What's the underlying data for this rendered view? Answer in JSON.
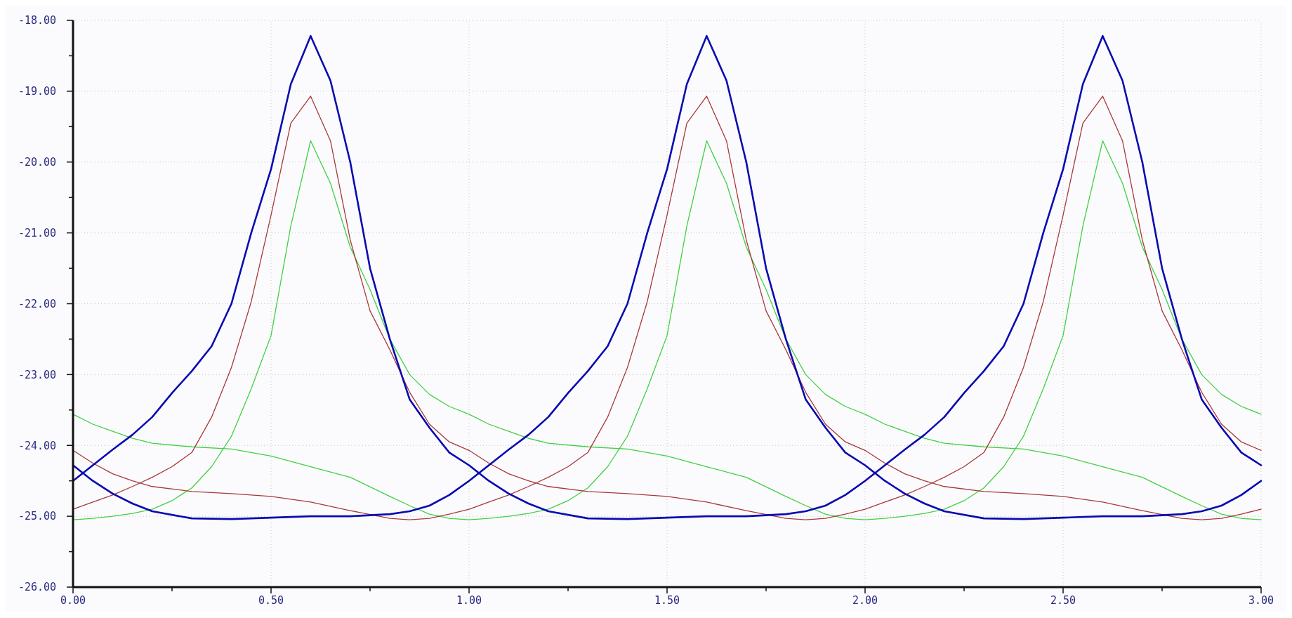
{
  "chart_data": {
    "type": "line",
    "xlim": [
      0,
      3
    ],
    "ylim": [
      -26,
      -18
    ],
    "xticks": [
      {
        "value": 0,
        "label": "0.00"
      },
      {
        "value": 0.25,
        "label": null
      },
      {
        "value": 0.5,
        "label": "0.50"
      },
      {
        "value": 0.75,
        "label": null
      },
      {
        "value": 1,
        "label": "1.00"
      },
      {
        "value": 1.25,
        "label": null
      },
      {
        "value": 1.5,
        "label": "1.50"
      },
      {
        "value": 1.75,
        "label": null
      },
      {
        "value": 2,
        "label": "2.00"
      },
      {
        "value": 2.25,
        "label": null
      },
      {
        "value": 2.5,
        "label": "2.50"
      },
      {
        "value": 2.75,
        "label": null
      },
      {
        "value": 3,
        "label": "3.00"
      }
    ],
    "yticks": [
      {
        "value": -26,
        "label": "-26.00"
      },
      {
        "value": -25.5,
        "label": null
      },
      {
        "value": -25,
        "label": "-25.00"
      },
      {
        "value": -24.5,
        "label": null
      },
      {
        "value": -24,
        "label": "-24.00"
      },
      {
        "value": -23.5,
        "label": null
      },
      {
        "value": -23,
        "label": "-23.00"
      },
      {
        "value": -22.5,
        "label": null
      },
      {
        "value": -22,
        "label": "-22.00"
      },
      {
        "value": -21.5,
        "label": null
      },
      {
        "value": -21,
        "label": "-21.00"
      },
      {
        "value": -20.5,
        "label": null
      },
      {
        "value": -20,
        "label": "-20.00"
      },
      {
        "value": -19.5,
        "label": null
      },
      {
        "value": -19,
        "label": "-19.00"
      },
      {
        "value": -18.5,
        "label": null
      },
      {
        "value": -18,
        "label": "-18.00"
      }
    ],
    "grid": true,
    "line_style": "solid",
    "marker": "none",
    "series": [
      {
        "color": "#40d040",
        "x": [
          0,
          0.05,
          0.1,
          0.15,
          0.2,
          0.25,
          0.3,
          0.35,
          0.4,
          0.45,
          0.5,
          0.55,
          0.6,
          0.65,
          0.7,
          0.75,
          0.8,
          0.85,
          0.9,
          0.95,
          1,
          1.05,
          1.1,
          1.15,
          1.2,
          1.3,
          1.4,
          1.5,
          1.6,
          1.7,
          1.8,
          1.85,
          1.9,
          1.95,
          2,
          2.05,
          2.1,
          2.15,
          2.2,
          2.25,
          2.3,
          2.35,
          2.4,
          2.45,
          2.5,
          2.55,
          2.6,
          2.65,
          2.7,
          2.75,
          2.8,
          2.85,
          2.9,
          2.95,
          3
        ],
        "values": [
          -25.05,
          -25.03,
          -25.0,
          -24.96,
          -24.9,
          -24.78,
          -24.6,
          -24.3,
          -23.87,
          -23.2,
          -22.45,
          -20.9,
          -19.7,
          -20.3,
          -21.2,
          -21.8,
          -22.5,
          -23.0,
          -23.28,
          -23.45,
          -23.56,
          -23.7,
          -23.8,
          -23.9,
          -23.97,
          -24.02,
          -24.05,
          -24.15,
          -24.3,
          -24.45,
          -24.72,
          -24.85,
          -24.97,
          -25.03,
          -25.05,
          -25.03,
          -25.0,
          -24.96,
          -24.9,
          -24.78,
          -24.6,
          -24.3,
          -23.87,
          -23.2,
          -22.45,
          -20.9,
          -19.7,
          -20.3,
          -21.2,
          -21.8,
          -22.5,
          -23.0,
          -23.28,
          -23.45,
          -23.56
        ]
      },
      {
        "color": "#40d040",
        "x": [
          0,
          0.05,
          0.1,
          0.15,
          0.2,
          0.3,
          0.4,
          0.5,
          0.6,
          0.7,
          0.8,
          0.85,
          0.9,
          0.95,
          1,
          1.05,
          1.1,
          1.15,
          1.2,
          1.25,
          1.3,
          1.35,
          1.4,
          1.45,
          1.5,
          1.55,
          1.6,
          1.65,
          1.7,
          1.75,
          1.8,
          1.85,
          1.9,
          1.95,
          2,
          2.05,
          2.1,
          2.15,
          2.2,
          2.3,
          2.4,
          2.5,
          2.6,
          2.7,
          2.8,
          2.85,
          2.9,
          2.95,
          3
        ],
        "values": [
          -23.56,
          -23.7,
          -23.8,
          -23.9,
          -23.97,
          -24.02,
          -24.05,
          -24.15,
          -24.3,
          -24.45,
          -24.72,
          -24.85,
          -24.97,
          -25.03,
          -25.05,
          -25.03,
          -25.0,
          -24.96,
          -24.9,
          -24.78,
          -24.6,
          -24.3,
          -23.87,
          -23.2,
          -22.45,
          -20.9,
          -19.7,
          -20.3,
          -21.2,
          -21.8,
          -22.5,
          -23.0,
          -23.28,
          -23.45,
          -23.56,
          -23.7,
          -23.8,
          -23.9,
          -23.97,
          -24.02,
          -24.05,
          -24.15,
          -24.3,
          -24.45,
          -24.72,
          -24.85,
          -24.97,
          -25.03,
          -25.05
        ]
      },
      {
        "color": "#a83838",
        "x": [
          0,
          0.05,
          0.1,
          0.15,
          0.2,
          0.25,
          0.3,
          0.35,
          0.4,
          0.45,
          0.5,
          0.55,
          0.6,
          0.65,
          0.7,
          0.75,
          0.8,
          0.85,
          0.9,
          0.95,
          1,
          1.05,
          1.1,
          1.15,
          1.2,
          1.3,
          1.4,
          1.5,
          1.6,
          1.7,
          1.8,
          1.85,
          1.9,
          1.95,
          2,
          2.05,
          2.1,
          2.15,
          2.2,
          2.25,
          2.3,
          2.35,
          2.4,
          2.45,
          2.5,
          2.55,
          2.6,
          2.65,
          2.7,
          2.75,
          2.8,
          2.85,
          2.9,
          2.95,
          3
        ],
        "values": [
          -24.9,
          -24.8,
          -24.7,
          -24.58,
          -24.45,
          -24.3,
          -24.1,
          -23.6,
          -22.9,
          -21.97,
          -20.75,
          -19.45,
          -19.07,
          -19.7,
          -21.1,
          -22.1,
          -22.65,
          -23.25,
          -23.7,
          -23.95,
          -24.07,
          -24.25,
          -24.4,
          -24.5,
          -24.58,
          -24.65,
          -24.68,
          -24.72,
          -24.8,
          -24.92,
          -25.03,
          -25.05,
          -25.03,
          -24.97,
          -24.9,
          -24.8,
          -24.7,
          -24.58,
          -24.45,
          -24.3,
          -24.1,
          -23.6,
          -22.9,
          -21.97,
          -20.75,
          -19.45,
          -19.07,
          -19.7,
          -21.1,
          -22.1,
          -22.65,
          -23.25,
          -23.7,
          -23.95,
          -24.07
        ]
      },
      {
        "color": "#a83838",
        "x": [
          0,
          0.05,
          0.1,
          0.15,
          0.2,
          0.3,
          0.4,
          0.5,
          0.6,
          0.7,
          0.8,
          0.85,
          0.9,
          0.95,
          1,
          1.05,
          1.1,
          1.15,
          1.2,
          1.25,
          1.3,
          1.35,
          1.4,
          1.45,
          1.5,
          1.55,
          1.6,
          1.65,
          1.7,
          1.75,
          1.8,
          1.85,
          1.9,
          1.95,
          2,
          2.05,
          2.1,
          2.15,
          2.2,
          2.3,
          2.4,
          2.5,
          2.6,
          2.7,
          2.8,
          2.85,
          2.9,
          2.95,
          3
        ],
        "values": [
          -24.07,
          -24.25,
          -24.4,
          -24.5,
          -24.58,
          -24.65,
          -24.68,
          -24.72,
          -24.8,
          -24.92,
          -25.03,
          -25.05,
          -25.03,
          -24.97,
          -24.9,
          -24.8,
          -24.7,
          -24.58,
          -24.45,
          -24.3,
          -24.1,
          -23.6,
          -22.9,
          -21.97,
          -20.75,
          -19.45,
          -19.07,
          -19.7,
          -21.1,
          -22.1,
          -22.65,
          -23.25,
          -23.7,
          -23.95,
          -24.07,
          -24.25,
          -24.4,
          -24.5,
          -24.58,
          -24.65,
          -24.68,
          -24.72,
          -24.8,
          -24.92,
          -25.03,
          -25.05,
          -25.03,
          -24.97,
          -24.9
        ]
      },
      {
        "color": "#0a0ab0",
        "x": [
          0,
          0.05,
          0.1,
          0.15,
          0.2,
          0.25,
          0.3,
          0.35,
          0.4,
          0.45,
          0.5,
          0.55,
          0.6,
          0.65,
          0.7,
          0.75,
          0.8,
          0.85,
          0.9,
          0.95,
          1,
          1.05,
          1.1,
          1.15,
          1.2,
          1.3,
          1.4,
          1.5,
          1.6,
          1.7,
          1.8,
          1.85,
          1.9,
          1.95,
          2,
          2.05,
          2.1,
          2.15,
          2.2,
          2.25,
          2.3,
          2.35,
          2.4,
          2.45,
          2.5,
          2.55,
          2.6,
          2.65,
          2.7,
          2.75,
          2.8,
          2.85,
          2.9,
          2.95,
          3
        ],
        "values": [
          -24.5,
          -24.28,
          -24.06,
          -23.85,
          -23.6,
          -23.26,
          -22.95,
          -22.6,
          -22.0,
          -21.0,
          -20.1,
          -18.9,
          -18.22,
          -18.85,
          -20.0,
          -21.5,
          -22.5,
          -23.35,
          -23.75,
          -24.1,
          -24.28,
          -24.5,
          -24.68,
          -24.82,
          -24.93,
          -25.03,
          -25.04,
          -25.02,
          -25.0,
          -25.0,
          -24.97,
          -24.93,
          -24.85,
          -24.7,
          -24.5,
          -24.28,
          -24.06,
          -23.85,
          -23.6,
          -23.26,
          -22.95,
          -22.6,
          -22.0,
          -21.0,
          -20.1,
          -18.9,
          -18.22,
          -18.85,
          -20.0,
          -21.5,
          -22.5,
          -23.35,
          -23.75,
          -24.1,
          -24.28
        ]
      },
      {
        "color": "#0a0ab0",
        "x": [
          0,
          0.05,
          0.1,
          0.15,
          0.2,
          0.3,
          0.4,
          0.5,
          0.6,
          0.7,
          0.8,
          0.85,
          0.9,
          0.95,
          1,
          1.05,
          1.1,
          1.15,
          1.2,
          1.25,
          1.3,
          1.35,
          1.4,
          1.45,
          1.5,
          1.55,
          1.6,
          1.65,
          1.7,
          1.75,
          1.8,
          1.85,
          1.9,
          1.95,
          2,
          2.05,
          2.1,
          2.15,
          2.2,
          2.3,
          2.4,
          2.5,
          2.6,
          2.7,
          2.8,
          2.85,
          2.9,
          2.95,
          3
        ],
        "values": [
          -24.28,
          -24.5,
          -24.68,
          -24.82,
          -24.93,
          -25.03,
          -25.04,
          -25.02,
          -25.0,
          -25.0,
          -24.97,
          -24.93,
          -24.85,
          -24.7,
          -24.5,
          -24.28,
          -24.06,
          -23.85,
          -23.6,
          -23.26,
          -22.95,
          -22.6,
          -22.0,
          -21.0,
          -20.1,
          -18.9,
          -18.22,
          -18.85,
          -20.0,
          -21.5,
          -22.5,
          -23.35,
          -23.75,
          -24.1,
          -24.28,
          -24.5,
          -24.68,
          -24.82,
          -24.93,
          -25.03,
          -25.04,
          -25.02,
          -25.0,
          -25.0,
          -24.97,
          -24.93,
          -24.85,
          -24.7,
          -24.5
        ]
      }
    ]
  }
}
